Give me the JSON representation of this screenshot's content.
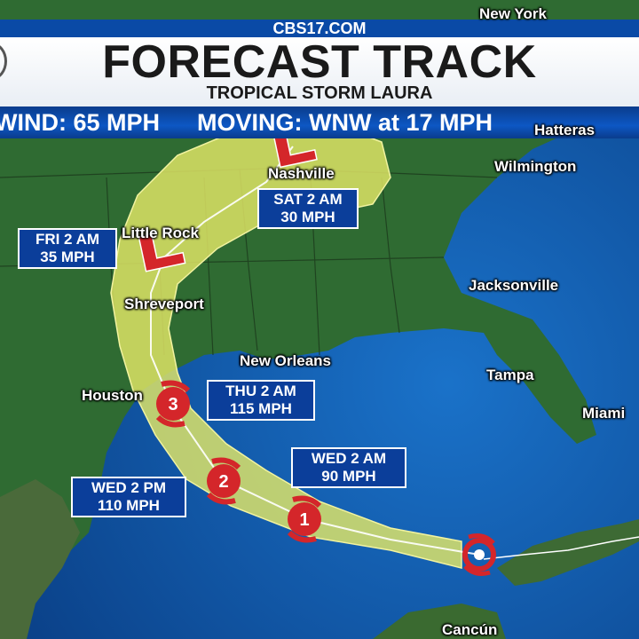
{
  "header": {
    "brand": "CBS17.COM",
    "title": "FORECAST TRACK",
    "subtitle": "TROPICAL STORM LAURA"
  },
  "info_bar": {
    "wind": "WIND: 65 MPH",
    "moving": "MOVING: WNW at 17 MPH"
  },
  "cities": {
    "new_york": "New York",
    "hatteras": "Hatteras",
    "wilmington": "Wilmington",
    "nashville": "Nashville",
    "little_rock": "Little Rock",
    "shreveport": "Shreveport",
    "jacksonville": "Jacksonville",
    "new_orleans": "New Orleans",
    "houston": "Houston",
    "tampa": "Tampa",
    "miami": "Miami",
    "cancun": "Cancún"
  },
  "forecast_points": [
    {
      "time": "SAT 2 AM",
      "speed": "30 MPH"
    },
    {
      "time": "FRI 2 AM",
      "speed": "35 MPH"
    },
    {
      "time": "THU 2 AM",
      "speed": "115 MPH"
    },
    {
      "time": "WED 2 AM",
      "speed": "90 MPH"
    },
    {
      "time": "WED 2 PM",
      "speed": "110 MPH"
    }
  ],
  "storm_markers": {
    "cat3": "3",
    "cat2": "2",
    "cat1": "1",
    "low": "L"
  },
  "colors": {
    "land": "#2f6b32",
    "water": "#0d56a8",
    "cone": "#e3e866",
    "storm": "#d4262a",
    "box": "#0b3e9a"
  }
}
